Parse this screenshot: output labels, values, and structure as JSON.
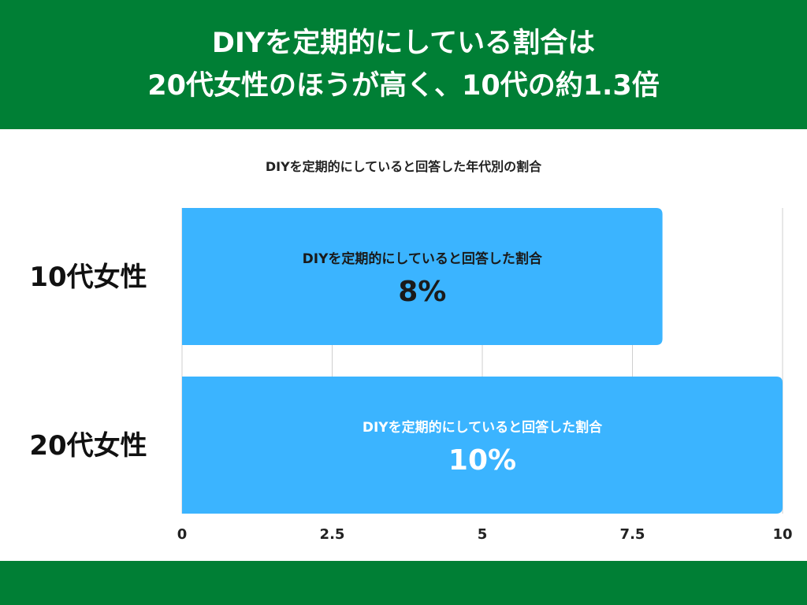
{
  "header": {
    "line1": "DIYを定期的にしている割合は",
    "line2": "20代女性のほうが高く、10代の約1.3倍"
  },
  "colors": {
    "band": "#007f35",
    "bar": "#3bb4ff",
    "grid": "#cfcfcf"
  },
  "chart_data": {
    "type": "bar",
    "orientation": "horizontal",
    "title": "DIYを定期的にしていると回答した年代別の割合",
    "categories": [
      "10代女性",
      "20代女性"
    ],
    "values": [
      8,
      10
    ],
    "bar_labels": [
      {
        "caption": "DIYを定期的にしていると回答した割合",
        "value": "8%"
      },
      {
        "caption": "DIYを定期的にしていると回答した割合",
        "value": "10%"
      }
    ],
    "xlim": [
      0,
      10
    ],
    "xticks": [
      "0",
      "2.5",
      "5",
      "7.5",
      "10"
    ],
    "grid": true
  }
}
